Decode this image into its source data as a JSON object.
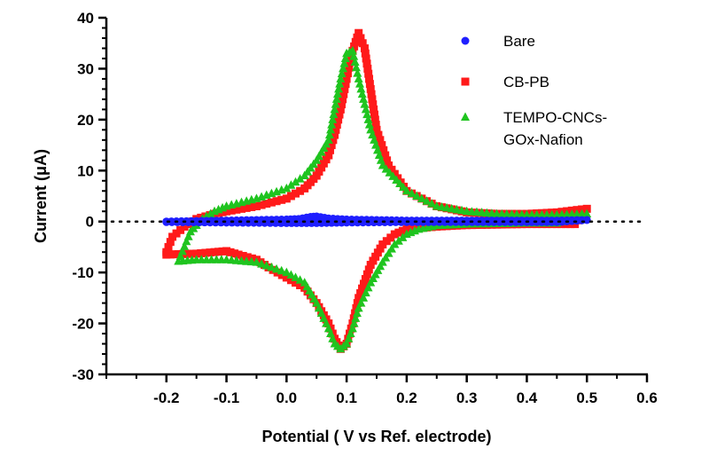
{
  "chart_data": {
    "type": "scatter",
    "title": "",
    "xlabel": "Potential ( V vs Ref. electrode)",
    "ylabel": "Current (μA)",
    "xlim": [
      -0.3,
      0.6
    ],
    "ylim": [
      -30,
      40
    ],
    "xticks": [
      -0.2,
      -0.1,
      0.0,
      0.1,
      0.2,
      0.3,
      0.4,
      0.5,
      0.6
    ],
    "xtick_labels": [
      "-0.2",
      "-0.1",
      "0.0",
      "0.1",
      "0.2",
      "0.3",
      "0.4",
      "0.5",
      "0.6"
    ],
    "yticks": [
      -30,
      -20,
      -10,
      0,
      10,
      20,
      30,
      40
    ],
    "ytick_labels": [
      "-30",
      "-20",
      "-10",
      "0",
      "10",
      "20",
      "30",
      "40"
    ],
    "zero_line": "dotted",
    "grid": false,
    "legend_position": "top-right",
    "series": [
      {
        "name": "Bare",
        "marker": "circle",
        "color": "#1f1fff",
        "x": [
          -0.2,
          -0.15,
          -0.1,
          -0.05,
          0.0,
          0.02,
          0.04,
          0.05,
          0.07,
          0.1,
          0.15,
          0.2,
          0.25,
          0.3,
          0.35,
          0.4,
          0.45,
          0.5,
          0.45,
          0.4,
          0.3,
          0.2,
          0.1,
          0.05,
          0.0,
          -0.1,
          -0.2
        ],
        "y": [
          0.0,
          0.1,
          0.2,
          0.3,
          0.4,
          0.5,
          0.9,
          1.0,
          0.6,
          0.4,
          0.3,
          0.2,
          0.2,
          0.2,
          0.2,
          0.2,
          0.2,
          0.3,
          -0.1,
          -0.1,
          -0.1,
          -0.1,
          -0.2,
          -0.3,
          -0.3,
          -0.2,
          -0.1
        ]
      },
      {
        "name": "CB-PB",
        "marker": "square",
        "color": "#ff1a1a",
        "x": [
          -0.2,
          -0.19,
          -0.17,
          -0.15,
          -0.12,
          -0.1,
          -0.05,
          0.0,
          0.03,
          0.05,
          0.07,
          0.08,
          0.09,
          0.1,
          0.11,
          0.12,
          0.13,
          0.14,
          0.15,
          0.17,
          0.2,
          0.25,
          0.3,
          0.35,
          0.4,
          0.45,
          0.5,
          0.48,
          0.45,
          0.4,
          0.35,
          0.3,
          0.25,
          0.2,
          0.18,
          0.16,
          0.14,
          0.12,
          0.11,
          0.1,
          0.09,
          0.08,
          0.07,
          0.05,
          0.03,
          0.0,
          -0.03,
          -0.05,
          -0.08,
          -0.1,
          -0.12,
          -0.15,
          -0.18,
          -0.2
        ],
        "y": [
          -6.0,
          -3.0,
          -1.0,
          0.5,
          1.5,
          2.0,
          3.0,
          4.5,
          6.5,
          9.0,
          13.0,
          17.0,
          22.0,
          28.0,
          33.5,
          37.0,
          34.0,
          26.0,
          18.0,
          11.0,
          6.0,
          3.0,
          1.8,
          1.5,
          1.5,
          1.8,
          2.5,
          -0.5,
          -0.5,
          -0.5,
          -0.6,
          -0.7,
          -1.0,
          -1.5,
          -2.5,
          -4.5,
          -8.5,
          -15.0,
          -20.0,
          -24.0,
          -25.0,
          -23.0,
          -20.0,
          -16.0,
          -13.0,
          -11.0,
          -9.0,
          -7.5,
          -6.5,
          -5.8,
          -6.0,
          -6.3,
          -6.4,
          -6.5
        ]
      },
      {
        "name": "TEMPO-CNCs-GOx-Nafion",
        "marker": "triangle",
        "color": "#1fc41f",
        "x": [
          -0.18,
          -0.16,
          -0.14,
          -0.12,
          -0.1,
          -0.05,
          0.0,
          0.03,
          0.05,
          0.07,
          0.08,
          0.09,
          0.1,
          0.11,
          0.12,
          0.14,
          0.16,
          0.2,
          0.25,
          0.3,
          0.35,
          0.4,
          0.45,
          0.5,
          0.45,
          0.4,
          0.35,
          0.3,
          0.25,
          0.22,
          0.2,
          0.18,
          0.16,
          0.14,
          0.12,
          0.11,
          0.1,
          0.09,
          0.08,
          0.07,
          0.05,
          0.03,
          0.0,
          -0.05,
          -0.1,
          -0.15,
          -0.18
        ],
        "y": [
          -7.8,
          -2.0,
          0.5,
          2.0,
          3.0,
          4.5,
          6.5,
          9.0,
          12.0,
          16.0,
          22.0,
          28.0,
          33.0,
          33.5,
          28.0,
          18.0,
          11.0,
          6.0,
          3.0,
          2.0,
          1.5,
          1.3,
          1.3,
          1.5,
          -0.3,
          -0.3,
          -0.4,
          -0.5,
          -0.8,
          -1.5,
          -2.5,
          -4.5,
          -8.0,
          -12.0,
          -17.0,
          -21.0,
          -24.0,
          -25.0,
          -24.0,
          -21.0,
          -16.0,
          -12.0,
          -10.0,
          -8.0,
          -7.5,
          -7.5,
          -7.8
        ]
      }
    ]
  }
}
